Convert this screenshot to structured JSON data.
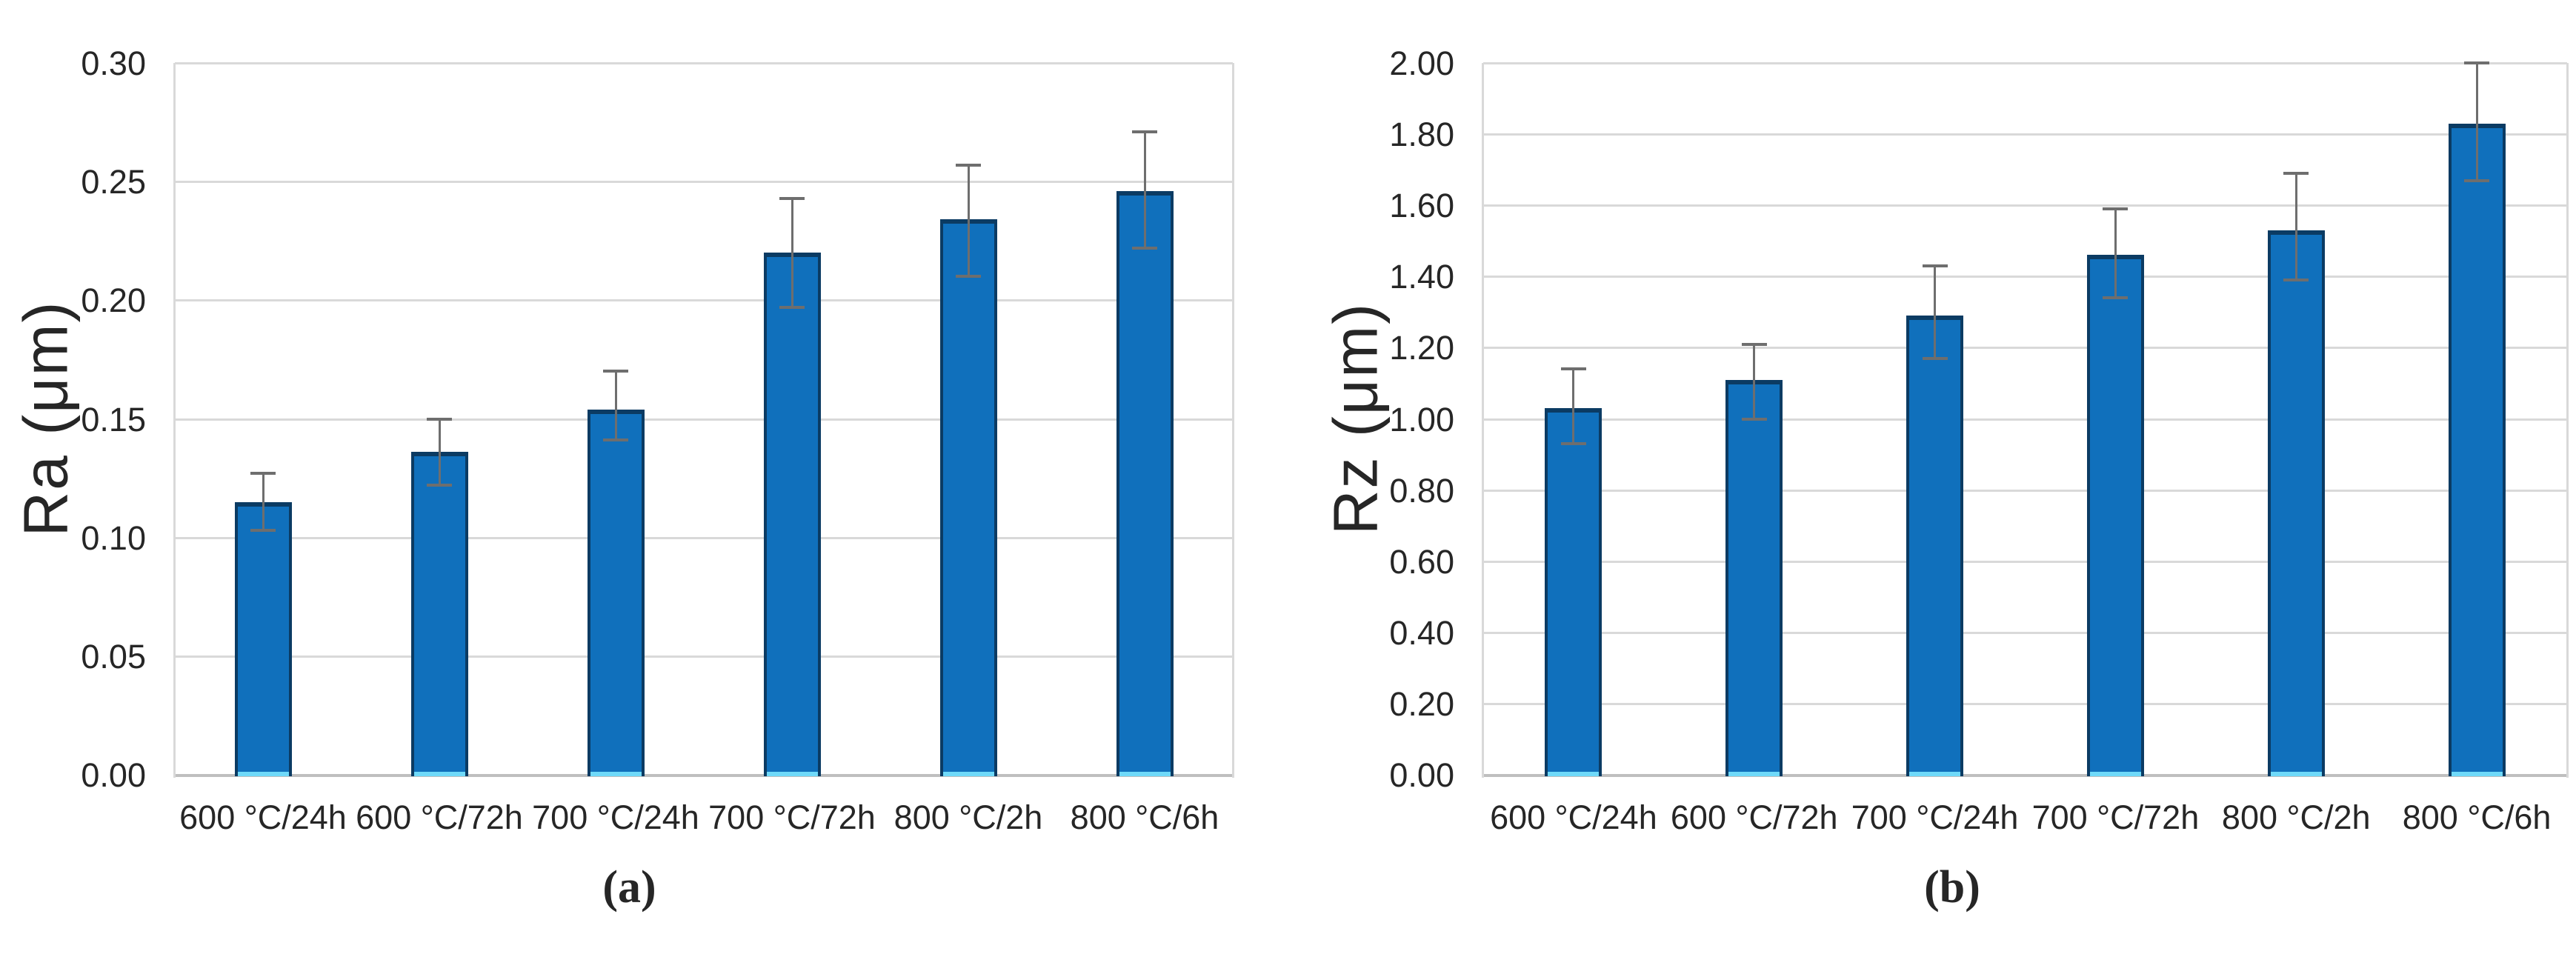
{
  "figure": {
    "description": "Two-panel bar chart of surface roughness vs heat treatment",
    "captions": {
      "a": "(a)",
      "b": "(b)"
    }
  },
  "colors": {
    "bar_fill": "#1070bc",
    "bar_border": "#0b3b63",
    "bar_base_highlight": "#6fd9f9",
    "gridline": "#d9d9d9",
    "axis_line": "#bfbfbf",
    "error_bar": "#6e6e6e",
    "text": "#262626",
    "background": "#ffffff"
  },
  "chart_data": [
    {
      "type": "bar",
      "caption": "(a)",
      "ylabel": "Ra (μm)",
      "xlabel": "",
      "ylim": [
        0,
        0.3
      ],
      "ytick_step": 0.05,
      "ytick_decimals": 2,
      "grid": "horizontal",
      "legend": "none",
      "categories": [
        "600 °C/24h",
        "600 °C/72h",
        "700 °C/24h",
        "700 °C/72h",
        "800 °C/2h",
        "800 °C/6h"
      ],
      "values": [
        0.115,
        0.136,
        0.154,
        0.22,
        0.234,
        0.246
      ],
      "error_plus": [
        0.012,
        0.014,
        0.016,
        0.023,
        0.023,
        0.025
      ],
      "error_minus": [
        0.012,
        0.014,
        0.013,
        0.023,
        0.024,
        0.024
      ]
    },
    {
      "type": "bar",
      "caption": "(b)",
      "ylabel": "Rz (μm)",
      "xlabel": "",
      "ylim": [
        0,
        2.0
      ],
      "ytick_step": 0.2,
      "ytick_decimals": 2,
      "grid": "horizontal",
      "legend": "none",
      "categories": [
        "600 °C/24h",
        "600 °C/72h",
        "700 °C/24h",
        "700 °C/72h",
        "800 °C/2h",
        "800 °C/6h"
      ],
      "values": [
        1.03,
        1.11,
        1.29,
        1.46,
        1.53,
        1.83
      ],
      "error_plus": [
        0.11,
        0.1,
        0.14,
        0.13,
        0.16,
        0.17
      ],
      "error_minus": [
        0.1,
        0.11,
        0.12,
        0.12,
        0.14,
        0.16
      ]
    }
  ]
}
